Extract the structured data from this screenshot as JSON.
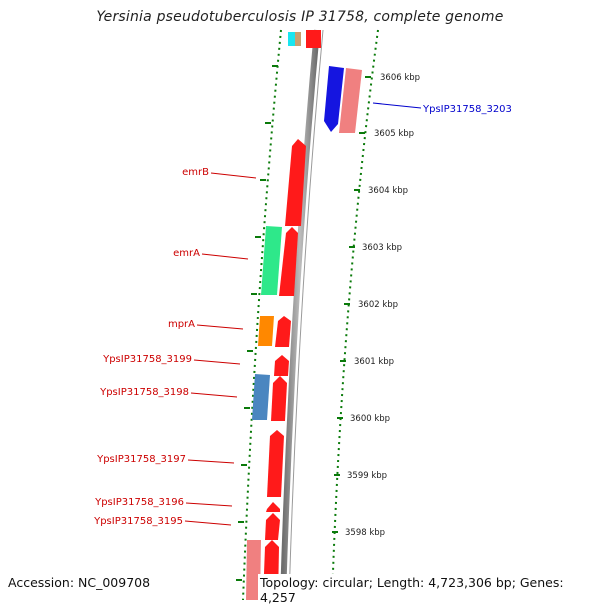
{
  "title": "Yersinia pseudotuberculosis IP 31758, complete genome",
  "footer": {
    "accession": "Accession: NC_009708",
    "topology": "Topology: circular; Length: 4,723,306 bp; Genes: 4,257"
  },
  "colors": {
    "forward_gene": "#ff1a1a",
    "reverse_gene_blue": "#1515e0",
    "pink_gene": "#f08080",
    "teal_gene": "#2ee88a",
    "orange_gene": "#ff8800",
    "steelblue_gene": "#4a86c0",
    "backbone": "#8c8c8c",
    "tick": "#0a7a0a",
    "label_red": "#cc0000",
    "label_blue": "#0000cc"
  },
  "scale_ticks": [
    "3606 kbp",
    "3605 kbp",
    "3604 kbp",
    "3603 kbp",
    "3602 kbp",
    "3601 kbp",
    "3600 kbp",
    "3599 kbp",
    "3598 kbp"
  ],
  "gene_labels": [
    {
      "name": "YpsIP31758_3203",
      "color": "label_blue"
    },
    {
      "name": "emrB",
      "color": "label_red"
    },
    {
      "name": "emrA",
      "color": "label_red"
    },
    {
      "name": "mprA",
      "color": "label_red"
    },
    {
      "name": "YpsIP31758_3199",
      "color": "label_red"
    },
    {
      "name": "YpsIP31758_3198",
      "color": "label_red"
    },
    {
      "name": "YpsIP31758_3197",
      "color": "label_red"
    },
    {
      "name": "YpsIP31758_3196",
      "color": "label_red"
    },
    {
      "name": "YpsIP31758_3195",
      "color": "label_red"
    }
  ]
}
